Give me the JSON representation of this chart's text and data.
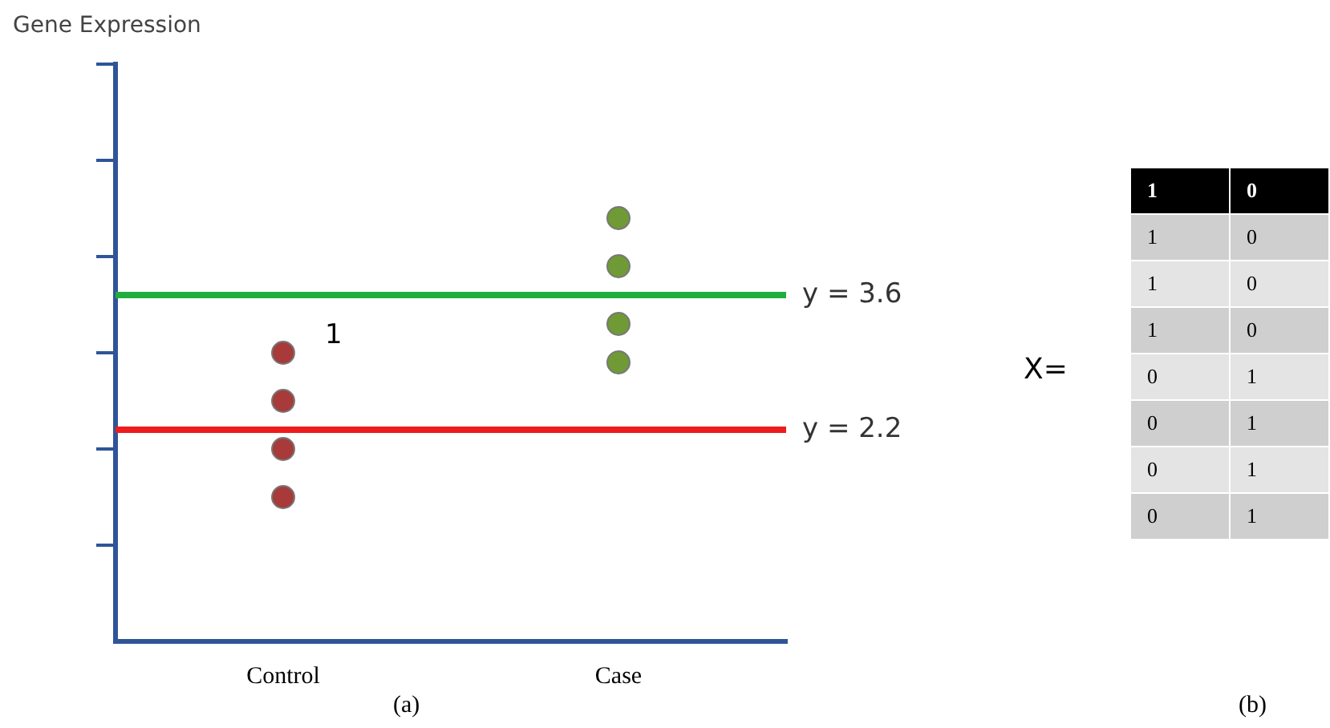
{
  "chart_data": [
    {
      "type": "scatter",
      "ylabel": "Gene Expression",
      "categories": [
        "Control",
        "Case"
      ],
      "series": [
        {
          "x": [
            "Control",
            "Control",
            "Control",
            "Control"
          ],
          "values": [
            3,
            2.5,
            2,
            1.5
          ],
          "color": "#a83a3a"
        },
        {
          "x": [
            "Case",
            "Case",
            "Case",
            "Case"
          ],
          "values": [
            4.4,
            3.9,
            3.3,
            2.9
          ],
          "color": "#6f9a35"
        }
      ],
      "ylim": [
        0,
        6
      ],
      "yticks": [
        {
          "value": 1,
          "label": null
        },
        {
          "value": 2,
          "label": null
        },
        {
          "value": 3,
          "label": null
        },
        {
          "value": 4,
          "label": null
        },
        {
          "value": 5,
          "label": null
        },
        {
          "value": 6,
          "label": null
        }
      ],
      "tick_labels": "x",
      "grid": false,
      "legend": false,
      "marker": "circle",
      "ref_lines": [
        {
          "axis": "y",
          "value": 3.6,
          "label": "y = 3.6",
          "color": "#1fae3e"
        },
        {
          "axis": "y",
          "value": 2.2,
          "label": "y = 2.2",
          "color": "#ee1c1c"
        }
      ],
      "annotations": [
        {
          "text": "1",
          "x": "Control",
          "y": 3
        },
        "(a)"
      ]
    },
    {
      "type": "other",
      "title": "X=",
      "cells": [
        [
          "1",
          "0"
        ],
        [
          "1",
          "0"
        ],
        [
          "1",
          "0"
        ],
        [
          "1",
          "0"
        ],
        [
          "0",
          "1"
        ],
        [
          "0",
          "1"
        ],
        [
          "0",
          "1"
        ],
        [
          "0",
          "1"
        ]
      ],
      "annotations": [
        "(b)"
      ]
    }
  ]
}
